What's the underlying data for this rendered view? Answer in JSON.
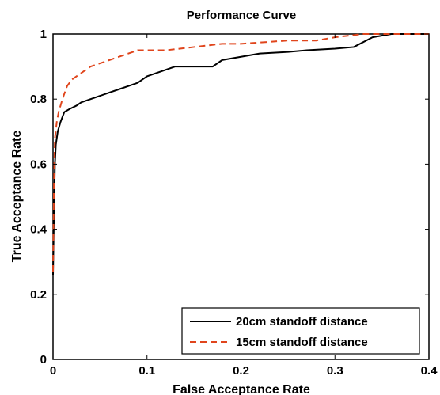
{
  "chart_data": {
    "type": "line",
    "title": "Performance Curve",
    "xlabel": "False Acceptance Rate",
    "ylabel": "True Acceptance Rate",
    "xlim": [
      0,
      0.4
    ],
    "ylim": [
      0,
      1
    ],
    "xticks": [
      0,
      0.1,
      0.2,
      0.3,
      0.4
    ],
    "yticks": [
      0,
      0.2,
      0.4,
      0.6,
      0.8,
      1
    ],
    "xtick_labels": [
      "0",
      "0.1",
      "0.2",
      "0.3",
      "0.4"
    ],
    "ytick_labels": [
      "0",
      "0.2",
      "0.4",
      "0.6",
      "0.8",
      "1"
    ],
    "grid": false,
    "legend_position": "bottom-right",
    "series": [
      {
        "name": "20cm standoff distance",
        "color": "#000000",
        "dash": "solid",
        "x": [
          0,
          0.001,
          0.002,
          0.003,
          0.005,
          0.008,
          0.012,
          0.018,
          0.025,
          0.03,
          0.04,
          0.05,
          0.06,
          0.07,
          0.08,
          0.09,
          0.1,
          0.11,
          0.12,
          0.13,
          0.15,
          0.17,
          0.18,
          0.2,
          0.22,
          0.25,
          0.27,
          0.3,
          0.32,
          0.34,
          0.36,
          0.4
        ],
        "y": [
          0.26,
          0.45,
          0.6,
          0.66,
          0.7,
          0.73,
          0.76,
          0.77,
          0.78,
          0.79,
          0.8,
          0.81,
          0.82,
          0.83,
          0.84,
          0.85,
          0.87,
          0.88,
          0.89,
          0.9,
          0.9,
          0.9,
          0.92,
          0.93,
          0.94,
          0.945,
          0.95,
          0.955,
          0.96,
          0.99,
          1.0,
          1.0
        ]
      },
      {
        "name": "15cm standoff distance",
        "color": "#e0451c",
        "dash": "dashed",
        "x": [
          0,
          0.001,
          0.002,
          0.004,
          0.006,
          0.01,
          0.015,
          0.02,
          0.03,
          0.04,
          0.05,
          0.06,
          0.07,
          0.08,
          0.09,
          0.1,
          0.12,
          0.15,
          0.18,
          0.2,
          0.25,
          0.28,
          0.3,
          0.33,
          0.36,
          0.4
        ],
        "y": [
          0.27,
          0.55,
          0.68,
          0.73,
          0.76,
          0.8,
          0.84,
          0.86,
          0.88,
          0.9,
          0.91,
          0.92,
          0.93,
          0.94,
          0.95,
          0.95,
          0.95,
          0.96,
          0.97,
          0.97,
          0.98,
          0.98,
          0.99,
          1.0,
          1.0,
          1.0
        ]
      }
    ]
  }
}
